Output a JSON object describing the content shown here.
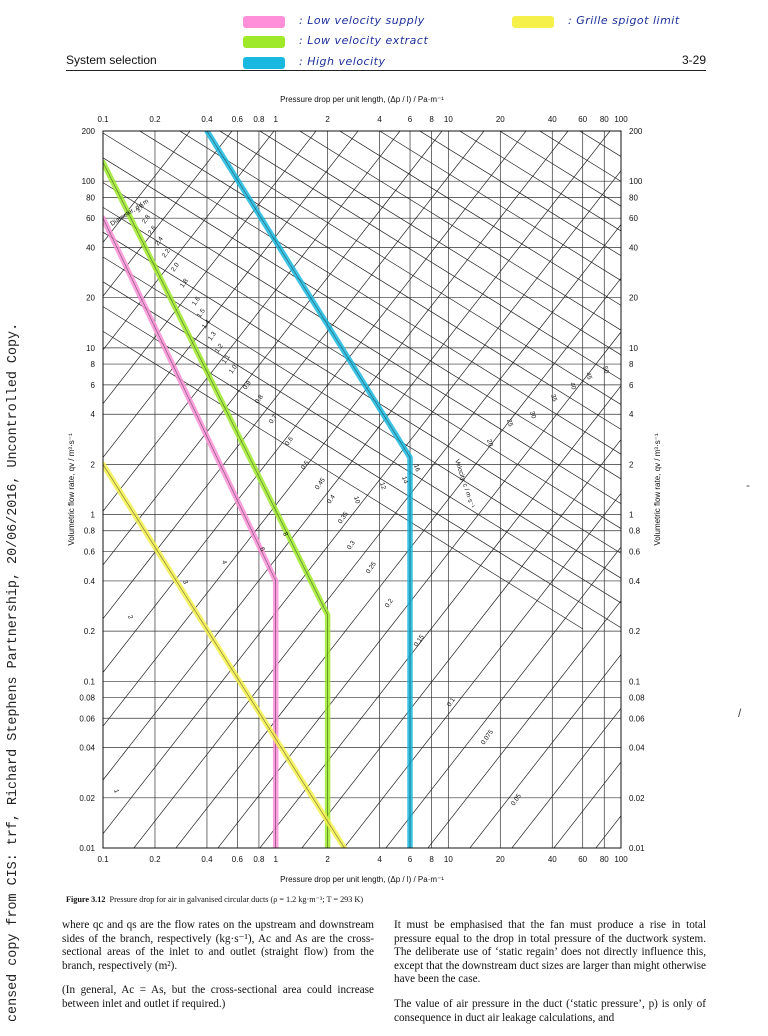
{
  "legend": {
    "items": [
      {
        "label": ": Low velocity supply",
        "color": "#ff8fd8"
      },
      {
        "label": ": Low velocity extract",
        "color": "#9eea2a"
      },
      {
        "label": ": High velocity",
        "color": "#19b8e0"
      },
      {
        "label": ": Grille spigot limit",
        "color": "#f5f04a"
      }
    ]
  },
  "header": {
    "title": "System selection",
    "page": "3-29"
  },
  "watermark": "censed copy from CIS: trf, Richard Stephens Partnership, 20/06/2016, Uncontrolled Copy.",
  "chart_data": {
    "type": "line",
    "title": "",
    "xlabel": "Pressure drop per unit length, (Δp / l) / Pa·m⁻¹",
    "ylabel": "Volumetric flow rate, qv / m³·s⁻¹",
    "x_scale": "log",
    "y_scale": "log",
    "xlim": [
      0.1,
      100
    ],
    "ylim": [
      0.01,
      200
    ],
    "x_ticks": [
      0.1,
      0.2,
      0.4,
      0.6,
      0.8,
      1,
      2,
      4,
      6,
      8,
      10,
      20,
      40,
      60,
      80,
      100
    ],
    "x_tick_labels": [
      "0.1",
      "0.2",
      "0.4",
      "0.6",
      "0.8",
      "1",
      "2",
      "4",
      "6",
      "8",
      "10",
      "20",
      "40",
      "60",
      "80",
      "100"
    ],
    "y_ticks": [
      0.01,
      0.02,
      0.04,
      0.06,
      0.08,
      0.1,
      0.2,
      0.4,
      0.6,
      0.8,
      1,
      2,
      4,
      6,
      8,
      10,
      20,
      40,
      60,
      80,
      100,
      200
    ],
    "y_tick_labels": [
      "0.01",
      "0.02",
      "0.04",
      "0.06",
      "0.08",
      "0.1",
      "0.2",
      "0.4",
      "0.6",
      "0.8",
      "1",
      "2",
      "4",
      "6",
      "8",
      "10",
      "20",
      "40",
      "60",
      "80",
      "100",
      "200"
    ],
    "grid": true,
    "diameter_heading": "Diameter, d / m",
    "velocity_heading": "Velocity, c / m·s⁻¹",
    "diameters": [
      "3.0",
      "2.8",
      "2.6",
      "2.4",
      "2.2",
      "2.0",
      "1.8",
      "1.6",
      "1.5",
      "1.4",
      "1.3",
      "1.2",
      "1.1",
      "1.0",
      "0.9",
      "0.8",
      "0.7",
      "0.6",
      "0.5",
      "0.45",
      "0.4",
      "0.35",
      "0.3",
      "0.25",
      "0.2",
      "0.15",
      "0.1",
      "0.075",
      "0.05"
    ],
    "velocities": [
      "1",
      "2",
      "3",
      "4",
      "6",
      "8",
      "10",
      "12",
      "14",
      "16",
      "20",
      "25",
      "30",
      "35",
      "40",
      "45",
      "50"
    ],
    "series": [
      {
        "name": "Low velocity supply",
        "color": "#ff8fd8",
        "points": [
          [
            0.1,
            60
          ],
          [
            1.0,
            0.4
          ],
          [
            1.0,
            0.01
          ]
        ]
      },
      {
        "name": "Low velocity extract",
        "color": "#9eea2a",
        "points": [
          [
            0.1,
            130
          ],
          [
            2.0,
            0.25
          ],
          [
            2.0,
            0.01
          ]
        ]
      },
      {
        "name": "High velocity",
        "color": "#19b8e0",
        "points": [
          [
            0.4,
            200
          ],
          [
            6.0,
            2.2
          ],
          [
            6.0,
            0.01
          ]
        ]
      },
      {
        "name": "Grille spigot limit",
        "color": "#f5f04a",
        "points": [
          [
            0.1,
            2.0
          ],
          [
            2.5,
            0.01
          ]
        ]
      }
    ]
  },
  "caption": {
    "label": "Figure 3.12",
    "text": "Pressure drop for air in galvanised circular ducts (ρ = 1.2 kg·m⁻³; T = 293 K)"
  },
  "body": {
    "left_p1": "where qc and qs are the flow rates on the upstream and downstream sides of the branch, respectively (kg·s⁻¹), Ac and As are the cross-sectional areas of the inlet to and outlet (straight flow) from the branch, respectively (m²).",
    "left_p2": "(In general, Ac = As, but the cross-sectional area could increase between inlet and outlet if required.)",
    "right_p1": "It must be emphasised that the fan must produce a rise in total pressure equal to the drop in total pressure of the ductwork system. The deliberate use of ‘static regain’ does not directly influence this, except that the downstream duct sizes are larger than might otherwise have been the case.",
    "right_p2": "The value of air pressure in the duct (‘static pressure’, p) is only of consequence in duct air leakage calculations, and"
  }
}
